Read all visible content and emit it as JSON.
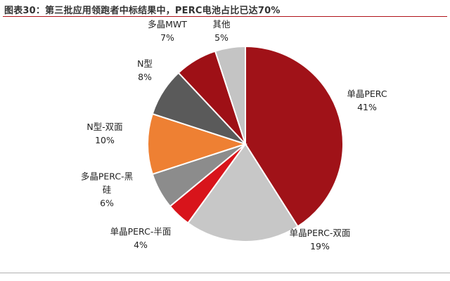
{
  "chart_data": {
    "type": "pie",
    "title": "图表30：第三批应用领跑者中标结果中，PERC电池占比已达70%",
    "slices": [
      {
        "label_lines": [
          "单晶PERC"
        ],
        "value_label": "41%",
        "value": 41,
        "color": "#a01218"
      },
      {
        "label_lines": [
          "单晶PERC-双面"
        ],
        "value_label": "19%",
        "value": 19,
        "color": "#c7c7c7"
      },
      {
        "label_lines": [
          "单晶PERC-半面"
        ],
        "value_label": "4%",
        "value": 4,
        "color": "#d8141b"
      },
      {
        "label_lines": [
          "多晶PERC-黑",
          "硅"
        ],
        "value_label": "6%",
        "value": 6,
        "color": "#8c8c8c"
      },
      {
        "label_lines": [
          "N型-双面"
        ],
        "value_label": "10%",
        "value": 10,
        "color": "#ee8033"
      },
      {
        "label_lines": [
          "N型"
        ],
        "value_label": "8%",
        "value": 8,
        "color": "#5a5a5a"
      },
      {
        "label_lines": [
          "多晶MWT"
        ],
        "value_label": "7%",
        "value": 7,
        "color": "#9e1016"
      },
      {
        "label_lines": [
          "其他"
        ],
        "value_label": "5%",
        "value": 5,
        "color": "#c4c4c4"
      }
    ]
  }
}
